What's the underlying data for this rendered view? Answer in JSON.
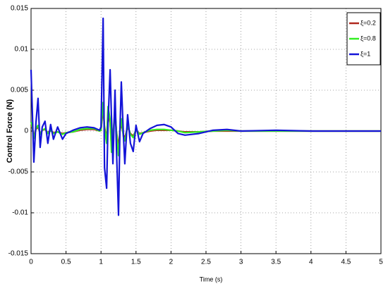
{
  "chart_data": {
    "type": "line",
    "xlabel": "Time (s)",
    "ylabel": "Control Force (N)",
    "x": [
      0,
      0.02,
      0.04,
      0.07,
      0.1,
      0.13,
      0.16,
      0.2,
      0.24,
      0.28,
      0.32,
      0.38,
      0.45,
      0.5,
      0.6,
      0.7,
      0.8,
      0.9,
      0.98,
      1.0,
      1.03,
      1.05,
      1.08,
      1.1,
      1.13,
      1.15,
      1.17,
      1.2,
      1.22,
      1.25,
      1.27,
      1.29,
      1.32,
      1.34,
      1.38,
      1.42,
      1.46,
      1.5,
      1.55,
      1.6,
      1.7,
      1.8,
      1.9,
      2.0,
      2.1,
      2.2,
      2.4,
      2.6,
      2.8,
      3.0,
      3.5,
      4.0,
      4.5,
      5.0
    ],
    "series": [
      {
        "name": "ξ=0.2",
        "color": "#b0281e",
        "values": [
          0.0008,
          0.0003,
          -0.0006,
          0.0002,
          0.0005,
          -0.0003,
          0.0001,
          0.0002,
          -0.0002,
          0.0001,
          -0.0002,
          -0.0001,
          -0.0003,
          -0.0002,
          -0.0001,
          0.0001,
          0.0002,
          0.0002,
          0,
          0.0001,
          0.0028,
          0.0005,
          -0.001,
          0.0025,
          0.001,
          -0.002,
          -0.0005,
          0.0022,
          0,
          -0.002,
          0,
          0.001,
          -0.0005,
          -0.0008,
          0.0005,
          -0.0003,
          -0.0006,
          0.0001,
          -0.0003,
          -0.0002,
          0,
          0.0001,
          0.0001,
          0.0001,
          0,
          -0.0001,
          -0.0001,
          0,
          0,
          0,
          0,
          0,
          0,
          0
        ]
      },
      {
        "name": "ξ=0.8",
        "color": "#33ee22",
        "values": [
          0.0011,
          0.0004,
          -0.0009,
          0.0003,
          0.0007,
          -0.0004,
          0.0001,
          0.0003,
          -0.0003,
          0.0001,
          -0.0003,
          -0.0001,
          -0.0004,
          -0.0002,
          -0.0001,
          0.0002,
          0.0003,
          0.0003,
          0,
          0.0001,
          0.0035,
          0.0003,
          -0.0015,
          0.003,
          0.0014,
          -0.0026,
          -0.0007,
          0.0028,
          0,
          -0.003,
          0,
          0.0015,
          -0.0007,
          -0.0012,
          0.0007,
          -0.0004,
          -0.0008,
          0.0002,
          -0.0004,
          -0.0002,
          0.0001,
          0.0002,
          0.0002,
          0.0001,
          0,
          -0.0002,
          -0.0001,
          0,
          0.0001,
          0,
          0,
          0,
          0,
          0
        ]
      },
      {
        "name": "ξ=1",
        "color": "#1414d8",
        "values": [
          0.0075,
          0.002,
          -0.0038,
          0.001,
          0.004,
          -0.002,
          0.0005,
          0.0012,
          -0.0015,
          0.0008,
          -0.001,
          0.0005,
          -0.001,
          -0.0003,
          0.0001,
          0.0004,
          0.0005,
          0.0004,
          0.0001,
          0.0005,
          0.0138,
          -0.0045,
          -0.007,
          0.001,
          0.0075,
          0.0015,
          -0.004,
          0.005,
          -0.002,
          -0.0103,
          0,
          0.006,
          -0.0005,
          -0.004,
          0.002,
          -0.0015,
          -0.0025,
          0.0007,
          -0.0013,
          -0.0003,
          0.0003,
          0.0007,
          0.0008,
          0.0005,
          -0.0003,
          -0.0005,
          -0.0003,
          0.0001,
          0.0002,
          0,
          0.0001,
          0,
          0,
          0
        ]
      }
    ],
    "xlim": [
      0,
      5
    ],
    "xticks": [
      0,
      0.5,
      1,
      1.5,
      2,
      2.5,
      3,
      3.5,
      4,
      4.5,
      5
    ],
    "ylim": [
      -0.015,
      0.015
    ],
    "yticks": [
      -0.015,
      -0.01,
      -0.005,
      0,
      0.005,
      0.01,
      0.015
    ],
    "grid": true,
    "legend": "upper right"
  }
}
